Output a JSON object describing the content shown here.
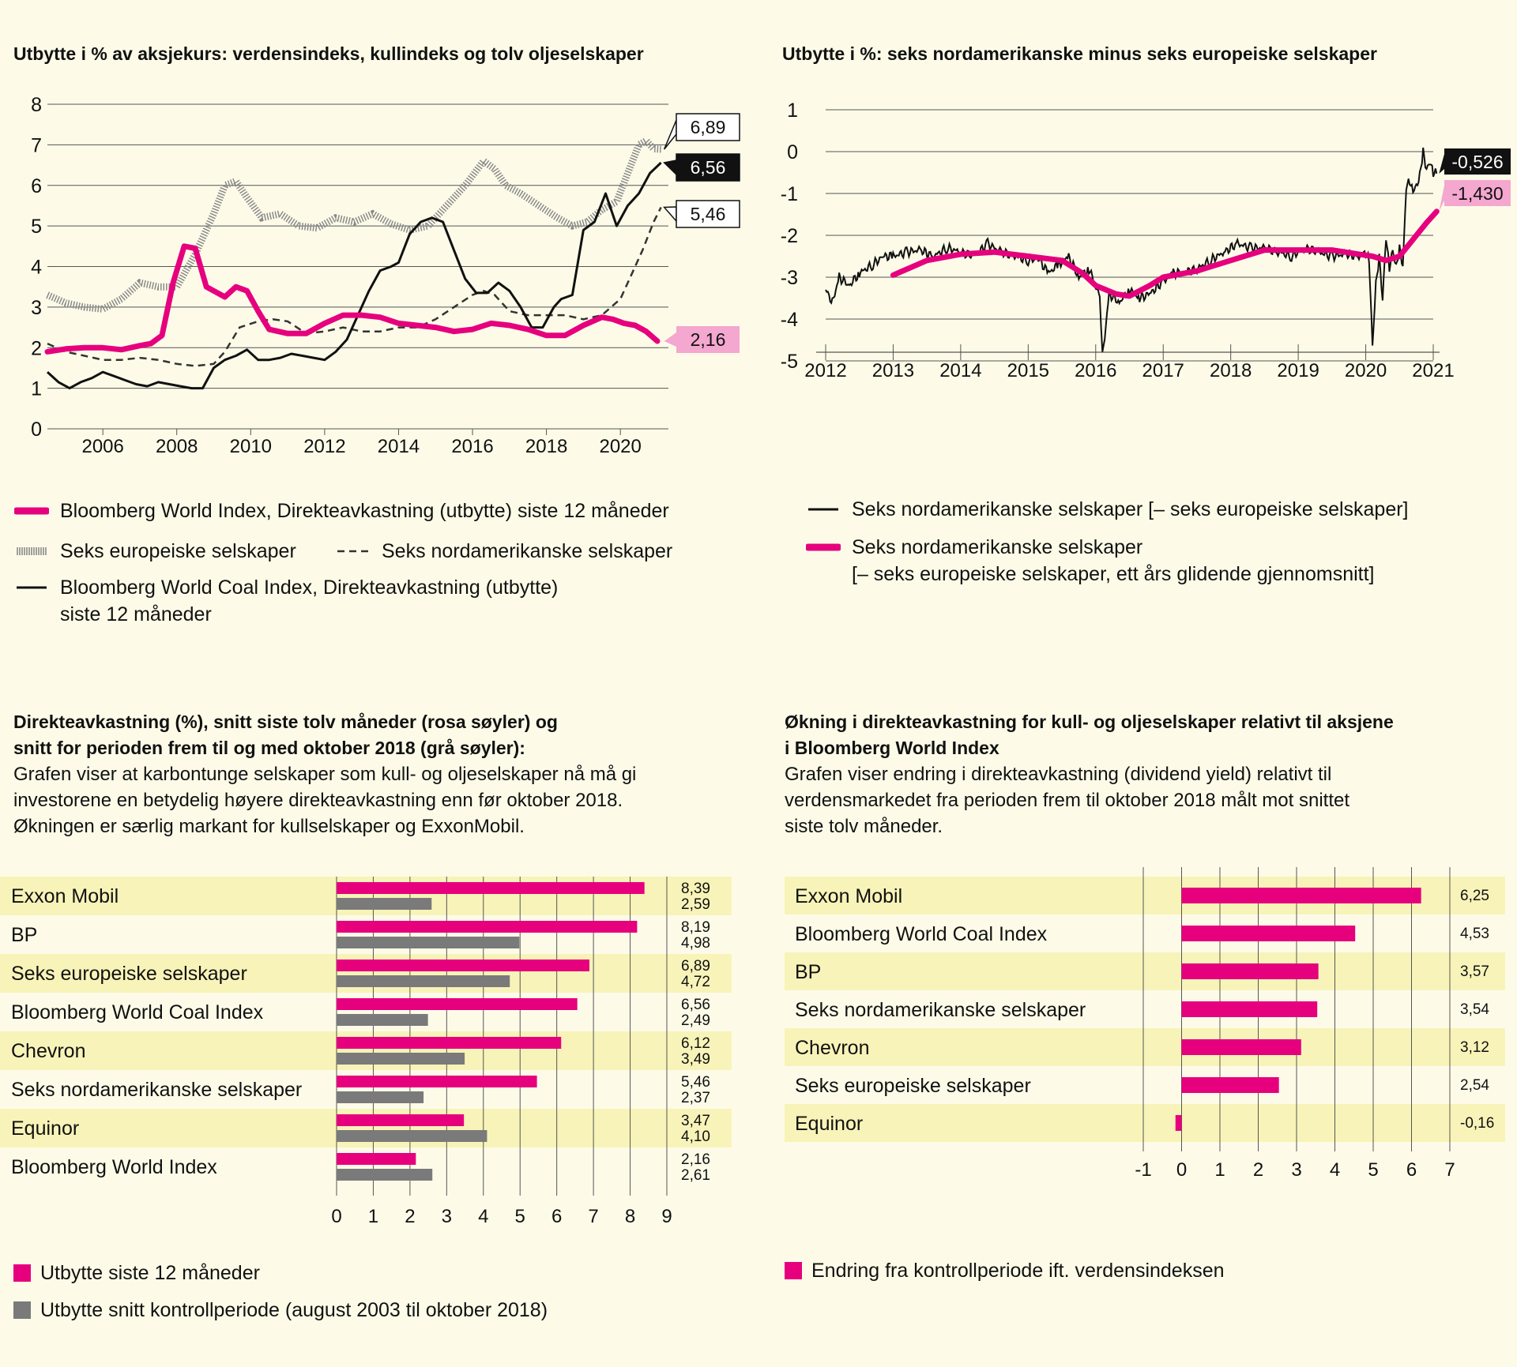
{
  "colors": {
    "magenta": "#e6007e",
    "pink_label": "#f4a7cf",
    "dark": "#111111",
    "grey_bar": "#7a7a7a",
    "grid": "#555555",
    "row_highlight": "#f8f3b8"
  },
  "charts": {
    "c1": {
      "title": "Utbytte i % av aksjekurs: verdensindeks, kullindeks og tolv oljeselskaper",
      "legend": {
        "world": "Bloomberg World Index, Direkteavkastning (utbytte) siste 12 måneder",
        "eu": "Seks europeiske selskaper",
        "na": "Seks nordamerikanske selskaper",
        "coal": "Bloomberg World Coal Index, Direkteavkastning (utbytte)\nsiste 12 måneder"
      }
    },
    "c2": {
      "title": "Utbytte i %: seks nordamerikanske minus seks europeiske selskaper",
      "legend": {
        "daily": "Seks nordamerikanske selskaper [– seks europeiske selskaper]",
        "avg": "Seks nordamerikanske selskaper\n[– seks europeiske selskaper, ett års glidende gjennomsnitt]"
      }
    },
    "c3": {
      "title": "Direkteavkastning (%), snitt siste tolv måneder (rosa søyler) og\nsnitt for perioden frem til og med oktober 2018 (grå søyler):",
      "subtitle": "Grafen viser at karbontunge selskaper som kull- og oljeselskaper nå må gi\ninvestorene en betydelig høyere direkteavkastning enn før oktober 2018.\nØkningen er særlig markant for kullselskaper og ExxonMobil.",
      "legend": {
        "recent": "Utbytte siste 12 måneder",
        "control": "Utbytte snitt kontrollperiode (august 2003 til oktober 2018)"
      }
    },
    "c4": {
      "title": "Økning i direkteavkastning for kull- og oljeselskaper relativt til aksjene\ni Bloomberg World Index",
      "subtitle": "Grafen viser endring i direkteavkastning (dividend yield) relativt til\nverdensmarkedet fra perioden frem til oktober 2018 målt mot snittet\nsiste tolv måneder.",
      "legend": {
        "change": "Endring fra kontrollperiode ift. verdensindeksen"
      }
    }
  },
  "chart_data": [
    {
      "type": "line",
      "title": "Utbytte i % av aksjekurs: verdensindeks, kullindeks og tolv oljeselskaper",
      "xlim": [
        2004.5,
        2021.3
      ],
      "ylim": [
        0,
        8
      ],
      "x_ticks": [
        2006,
        2008,
        2010,
        2012,
        2014,
        2016,
        2018,
        2020
      ],
      "y_ticks": [
        0,
        1,
        2,
        3,
        4,
        5,
        6,
        7,
        8
      ],
      "grid": true,
      "end_labels": {
        "world": "2,16",
        "coal": "6,56",
        "na": "5,46",
        "eu": "6,89"
      },
      "series": [
        {
          "key": "world",
          "name": "Bloomberg World Index, Direkteavkastning (utbytte) siste 12 måneder",
          "x": [
            2004.5,
            2005,
            2005.5,
            2006,
            2006.5,
            2007,
            2007.3,
            2007.6,
            2007.9,
            2008.2,
            2008.5,
            2008.8,
            2009.0,
            2009.3,
            2009.6,
            2009.9,
            2010.2,
            2010.5,
            2011,
            2011.5,
            2012,
            2012.5,
            2013,
            2013.5,
            2014,
            2014.5,
            2015,
            2015.5,
            2016,
            2016.5,
            2017,
            2017.5,
            2018,
            2018.5,
            2019,
            2019.5,
            2019.8,
            2020.1,
            2020.4,
            2020.7,
            2021.0
          ],
          "y": [
            1.9,
            1.97,
            2.0,
            2.0,
            1.95,
            2.05,
            2.1,
            2.3,
            3.6,
            4.5,
            4.45,
            3.5,
            3.4,
            3.25,
            3.5,
            3.4,
            2.9,
            2.45,
            2.35,
            2.35,
            2.6,
            2.8,
            2.8,
            2.75,
            2.6,
            2.55,
            2.5,
            2.4,
            2.45,
            2.6,
            2.55,
            2.45,
            2.3,
            2.3,
            2.55,
            2.75,
            2.7,
            2.6,
            2.55,
            2.4,
            2.16
          ]
        },
        {
          "key": "eu",
          "name": "Seks europeiske selskaper",
          "x": [
            2004.5,
            2005,
            2005.5,
            2006,
            2006.5,
            2007,
            2007.5,
            2008,
            2008.5,
            2009,
            2009.3,
            2009.6,
            2009.9,
            2010.3,
            2010.8,
            2011.3,
            2011.8,
            2012.3,
            2012.8,
            2013.3,
            2013.8,
            2014.3,
            2014.8,
            2015.3,
            2015.8,
            2016.3,
            2016.6,
            2016.9,
            2017.3,
            2017.8,
            2018.3,
            2018.7,
            2019.1,
            2019.5,
            2019.9,
            2020.2,
            2020.5,
            2020.7,
            2020.9,
            2021.1
          ],
          "y": [
            3.3,
            3.1,
            3.0,
            2.95,
            3.2,
            3.6,
            3.5,
            3.5,
            4.3,
            5.3,
            6.0,
            6.1,
            5.7,
            5.2,
            5.3,
            5.0,
            4.95,
            5.2,
            5.1,
            5.3,
            5.05,
            4.9,
            5.0,
            5.5,
            6.0,
            6.6,
            6.4,
            6.0,
            5.8,
            5.5,
            5.2,
            5.0,
            5.1,
            5.4,
            5.6,
            6.3,
            7.0,
            7.1,
            6.9,
            6.89
          ]
        },
        {
          "key": "na",
          "name": "Seks nordamerikanske selskaper",
          "x": [
            2004.5,
            2005,
            2005.5,
            2006,
            2006.5,
            2007,
            2007.5,
            2008,
            2008.5,
            2009,
            2009.3,
            2009.7,
            2010.2,
            2010.6,
            2011,
            2011.5,
            2012,
            2012.5,
            2013,
            2013.5,
            2014,
            2014.5,
            2015,
            2015.5,
            2016,
            2016.3,
            2016.6,
            2017,
            2017.5,
            2018,
            2018.5,
            2019,
            2019.5,
            2020,
            2020.3,
            2020.6,
            2020.9,
            2021.1
          ],
          "y": [
            2.1,
            1.9,
            1.8,
            1.7,
            1.7,
            1.75,
            1.7,
            1.6,
            1.55,
            1.6,
            1.9,
            2.5,
            2.65,
            2.7,
            2.65,
            2.35,
            2.4,
            2.5,
            2.4,
            2.4,
            2.5,
            2.5,
            2.7,
            3.0,
            3.3,
            3.4,
            3.3,
            2.9,
            2.8,
            2.8,
            2.8,
            2.7,
            2.8,
            3.2,
            3.8,
            4.4,
            5.1,
            5.46
          ]
        },
        {
          "key": "coal",
          "name": "Bloomberg World Coal Index, Direkteavkastning (utbytte) siste 12 måneder",
          "x": [
            2004.5,
            2004.8,
            2005.1,
            2005.4,
            2005.7,
            2006,
            2006.3,
            2006.6,
            2006.9,
            2007.2,
            2007.5,
            2007.8,
            2008.1,
            2008.4,
            2008.7,
            2009.0,
            2009.3,
            2009.6,
            2009.9,
            2010.2,
            2010.5,
            2010.8,
            2011.1,
            2011.4,
            2011.7,
            2012.0,
            2012.3,
            2012.6,
            2012.9,
            2013.2,
            2013.5,
            2013.8,
            2014.0,
            2014.3,
            2014.6,
            2014.9,
            2015.2,
            2015.5,
            2015.8,
            2016.1,
            2016.4,
            2016.7,
            2017.0,
            2017.3,
            2017.6,
            2017.9,
            2018.2,
            2018.4,
            2018.7,
            2019.0,
            2019.3,
            2019.6,
            2019.9,
            2020.2,
            2020.5,
            2020.8,
            2021.1
          ],
          "y": [
            1.4,
            1.15,
            1.0,
            1.15,
            1.25,
            1.4,
            1.3,
            1.2,
            1.1,
            1.05,
            1.15,
            1.1,
            1.05,
            1.0,
            1.0,
            1.5,
            1.7,
            1.8,
            1.95,
            1.7,
            1.7,
            1.75,
            1.85,
            1.8,
            1.75,
            1.7,
            1.9,
            2.2,
            2.8,
            3.4,
            3.9,
            4.0,
            4.1,
            4.8,
            5.1,
            5.2,
            5.1,
            4.4,
            3.7,
            3.35,
            3.35,
            3.6,
            3.4,
            3.0,
            2.5,
            2.5,
            3.0,
            3.2,
            3.3,
            4.9,
            5.1,
            5.8,
            5.0,
            5.5,
            5.8,
            6.3,
            6.56
          ]
        }
      ]
    },
    {
      "type": "line",
      "title": "Utbytte i %: seks nordamerikanske minus seks europeiske selskaper",
      "xlim": [
        2012,
        2021
      ],
      "ylim": [
        -5.3,
        1.2
      ],
      "x_ticks": [
        2012,
        2013,
        2014,
        2015,
        2016,
        2017,
        2018,
        2019,
        2020,
        2021
      ],
      "y_ticks": [
        1,
        0,
        -1,
        -2,
        -3,
        -4,
        -5
      ],
      "grid": true,
      "end_labels": {
        "daily": "-0,526",
        "avg": "-1,430"
      },
      "series": [
        {
          "key": "daily",
          "name": "Seks nordamerikanske selskaper [– seks europeiske selskaper]",
          "x": [
            2012.0,
            2012.1,
            2012.2,
            2012.35,
            2012.5,
            2012.7,
            2012.85,
            2013.0,
            2013.2,
            2013.4,
            2013.6,
            2013.8,
            2014.0,
            2014.2,
            2014.4,
            2014.6,
            2014.8,
            2015.0,
            2015.15,
            2015.3,
            2015.45,
            2015.6,
            2015.75,
            2015.9,
            2016.0,
            2016.06,
            2016.1,
            2016.2,
            2016.35,
            2016.5,
            2016.65,
            2016.8,
            2017.0,
            2017.15,
            2017.3,
            2017.5,
            2017.7,
            2017.9,
            2018.1,
            2018.3,
            2018.5,
            2018.7,
            2018.9,
            2019.1,
            2019.3,
            2019.5,
            2019.7,
            2019.9,
            2020.0,
            2020.05,
            2020.1,
            2020.15,
            2020.2,
            2020.25,
            2020.3,
            2020.35,
            2020.4,
            2020.45,
            2020.5,
            2020.55,
            2020.6,
            2020.65,
            2020.7,
            2020.8,
            2020.85,
            2020.9,
            2020.95,
            2021.0,
            2021.05
          ],
          "y": [
            -3.3,
            -3.6,
            -3.0,
            -3.2,
            -2.9,
            -2.7,
            -2.5,
            -2.5,
            -2.4,
            -2.35,
            -2.5,
            -2.3,
            -2.4,
            -2.5,
            -2.2,
            -2.4,
            -2.5,
            -2.6,
            -2.55,
            -2.9,
            -2.7,
            -2.5,
            -3.0,
            -2.8,
            -3.2,
            -3.5,
            -4.9,
            -3.4,
            -3.6,
            -3.3,
            -3.5,
            -3.4,
            -3.1,
            -2.9,
            -2.9,
            -2.8,
            -2.6,
            -2.4,
            -2.2,
            -2.3,
            -2.3,
            -2.4,
            -2.5,
            -2.3,
            -2.4,
            -2.5,
            -2.45,
            -2.5,
            -2.4,
            -2.6,
            -4.7,
            -3.2,
            -2.5,
            -3.5,
            -2.0,
            -2.8,
            -2.4,
            -2.8,
            -2.3,
            -2.7,
            -0.8,
            -0.7,
            -1.0,
            -0.6,
            0.0,
            -0.4,
            -0.2,
            -0.5,
            -0.526
          ]
        },
        {
          "key": "avg",
          "name": "Seks nordamerikanske selskaper [– seks europeiske selskaper, ett års glidende gjennomsnitt]",
          "x": [
            2013.0,
            2013.5,
            2014.0,
            2014.5,
            2015.0,
            2015.5,
            2015.8,
            2016.0,
            2016.3,
            2016.5,
            2016.8,
            2017.0,
            2017.5,
            2018.0,
            2018.5,
            2019.0,
            2019.5,
            2019.9,
            2020.1,
            2020.3,
            2020.5,
            2020.7,
            2020.9,
            2021.05
          ],
          "y": [
            -2.95,
            -2.6,
            -2.45,
            -2.4,
            -2.5,
            -2.6,
            -2.9,
            -3.2,
            -3.4,
            -3.45,
            -3.2,
            -3.0,
            -2.85,
            -2.6,
            -2.35,
            -2.35,
            -2.35,
            -2.45,
            -2.5,
            -2.6,
            -2.5,
            -2.1,
            -1.7,
            -1.43
          ]
        }
      ]
    },
    {
      "type": "bar",
      "title": "Direkteavkastning (%), snitt siste tolv måneder (rosa søyler) og snitt for perioden frem til og med oktober 2018 (grå søyler):",
      "categories": [
        "Exxon Mobil",
        "BP",
        "Seks europeiske selskaper",
        "Bloomberg World Coal Index",
        "Chevron",
        "Seks nordamerikanske selskaper",
        "Equinor",
        "Bloomberg World Index"
      ],
      "xlim": [
        0,
        9
      ],
      "x_ticks": [
        0,
        1,
        2,
        3,
        4,
        5,
        6,
        7,
        8,
        9
      ],
      "series": [
        {
          "name": "Utbytte siste 12 måneder",
          "values": [
            8.39,
            8.19,
            6.89,
            6.56,
            6.12,
            5.46,
            3.47,
            2.16
          ],
          "labels": [
            "8,39",
            "8,19",
            "6,89",
            "6,56",
            "6,12",
            "5,46",
            "3,47",
            "2,16"
          ]
        },
        {
          "name": "Utbytte snitt kontrollperiode (august 2003 til oktober 2018)",
          "values": [
            2.59,
            4.98,
            4.72,
            2.49,
            3.49,
            2.37,
            4.1,
            2.61
          ],
          "labels": [
            "2,59",
            "4,98",
            "4,72",
            "2,49",
            "3,49",
            "2,37",
            "4,10",
            "2,61"
          ]
        }
      ]
    },
    {
      "type": "bar",
      "title": "Økning i direkteavkastning for kull- og oljeselskaper relativt til aksjene i Bloomberg World Index",
      "categories": [
        "Exxon Mobil",
        "Bloomberg World Coal Index",
        "BP",
        "Seks nordamerikanske selskaper",
        "Chevron",
        "Seks europeiske selskaper",
        "Equinor"
      ],
      "xlim": [
        -1,
        7
      ],
      "x_ticks": [
        -1,
        0,
        1,
        2,
        3,
        4,
        5,
        6,
        7
      ],
      "series": [
        {
          "name": "Endring fra kontrollperiode ift. verdensindeksen",
          "values": [
            6.25,
            4.53,
            3.57,
            3.54,
            3.12,
            2.54,
            -0.16
          ],
          "labels": [
            "6,25",
            "4,53",
            "3,57",
            "3,54",
            "3,12",
            "2,54",
            "-0,16"
          ]
        }
      ]
    }
  ]
}
